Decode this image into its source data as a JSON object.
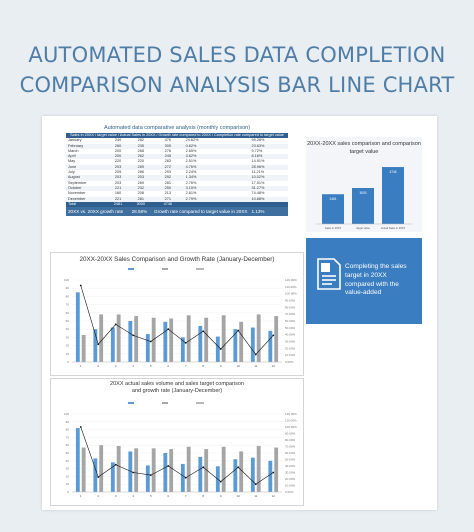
{
  "page": {
    "title_line1": "AUTOMATED SALES DATA COMPLETION",
    "title_line2": "COMPARISON ANALYSIS BAR LINE CHART"
  },
  "table": {
    "title": "Automated data comparative analysis (monthly comparison)",
    "header": [
      "",
      "Sales in 20XX",
      "target value",
      "Actual Sales in 20XX",
      "Growth rate compared to 20XX",
      "Completion rate compared to target value"
    ],
    "rows": [
      {
        "month": "January",
        "a": "240",
        "b": "282",
        "c": "476",
        "g": "24.62%",
        "r": "99.28%"
      },
      {
        "month": "February",
        "a": "260",
        "b": "235",
        "c": "305",
        "g": "0.62%",
        "r": "23.63%"
      },
      {
        "month": "March",
        "a": "200",
        "b": "268",
        "c": "276",
        "g": "2.65%",
        "r": "9.72%"
      },
      {
        "month": "April",
        "a": "200",
        "b": "262",
        "c": "245",
        "g": "3.62%",
        "r": "8.16%"
      },
      {
        "month": "May",
        "a": "220",
        "b": "220",
        "c": "283",
        "g": "2.51%",
        "r": "14.91%"
      },
      {
        "month": "June",
        "a": "203",
        "b": "269",
        "c": "272",
        "g": "4.76%",
        "r": "28.96%"
      },
      {
        "month": "July",
        "a": "205",
        "b": "286",
        "c": "293",
        "g": "2.24%",
        "r": "11.21%"
      },
      {
        "month": "August",
        "a": "203",
        "b": "203",
        "c": "292",
        "g": "1.34%",
        "r": "10.02%"
      },
      {
        "month": "September",
        "a": "203",
        "b": "269",
        "c": "281",
        "g": "2.76%",
        "r": "17.51%"
      },
      {
        "month": "October",
        "a": "221",
        "b": "232",
        "c": "250",
        "g": "3.15%",
        "r": "31.27%"
      },
      {
        "month": "November",
        "a": "160",
        "b": "208",
        "c": "213",
        "g": "2.61%",
        "r": "74.48%"
      },
      {
        "month": "December",
        "a": "221",
        "b": "281",
        "c": "271",
        "g": "2.79%",
        "r": "10.68%"
      }
    ],
    "total": {
      "month": "Total",
      "a": "2481",
      "b": "3000",
      "c": "4746"
    },
    "summary": {
      "label1": "20XX vs. 20XX growth rate",
      "value1": "28.58%",
      "label2": "Growth rate compared to target value in 20XX",
      "value2": "1.13%"
    }
  },
  "panel": {
    "title": "20XX-20XX sales comparison and comparison target value"
  },
  "callout": {
    "icon": "document-chart-icon",
    "text": "Completing the sales target in 20XX compared with the value-added"
  },
  "chart1": {
    "title": "20XX-20XX Sales Comparison and Growth Rate (January-December)"
  },
  "chart2": {
    "title": "20XX actual sales volume and sales target comparison and growth rate (January-December)"
  },
  "colors": {
    "blue": "#5b9bd5",
    "gray": "#a5a5a5",
    "navy": "#2f5f8f",
    "accent": "#3a7dc0",
    "title": "#4f7da5"
  },
  "chart_data": [
    {
      "type": "bar",
      "categories": [
        "Sales in 20XX",
        "target value",
        "Actual Sales in 20XX"
      ],
      "values": [
        2481,
        3000,
        4746
      ]
    },
    {
      "type": "bar",
      "categories": [
        "1",
        "2",
        "3",
        "4",
        "5",
        "6",
        "7",
        "8",
        "9",
        "10",
        "11",
        "12"
      ],
      "ylim": [
        0,
        100
      ],
      "y2lim": [
        0,
        120
      ],
      "series": [
        {
          "kind": "bar",
          "values": [
            85,
            40,
            42,
            50,
            34,
            49,
            30,
            44,
            31,
            40,
            42,
            38
          ]
        },
        {
          "kind": "bar",
          "values": [
            33,
            58,
            58,
            56,
            54,
            53,
            57,
            54,
            57,
            49,
            58,
            56
          ]
        },
        {
          "kind": "line",
          "values": [
            112,
            26,
            55,
            39,
            30,
            48,
            28,
            45,
            19,
            46,
            11,
            39
          ]
        }
      ]
    },
    {
      "type": "bar",
      "categories": [
        "1",
        "2",
        "3",
        "4",
        "5",
        "6",
        "7",
        "8",
        "9",
        "10",
        "11",
        "12"
      ],
      "ylim": [
        0,
        100
      ],
      "y2lim": [
        0,
        120
      ],
      "series": [
        {
          "kind": "bar",
          "values": [
            82,
            43,
            38,
            52,
            34,
            50,
            36,
            45,
            33,
            42,
            44,
            40
          ]
        },
        {
          "kind": "bar",
          "values": [
            57,
            60,
            59,
            56,
            56,
            55,
            58,
            55,
            58,
            52,
            59,
            57
          ]
        },
        {
          "kind": "line",
          "values": [
            100,
            23,
            42,
            30,
            26,
            40,
            22,
            38,
            16,
            38,
            12,
            30
          ]
        }
      ]
    }
  ]
}
